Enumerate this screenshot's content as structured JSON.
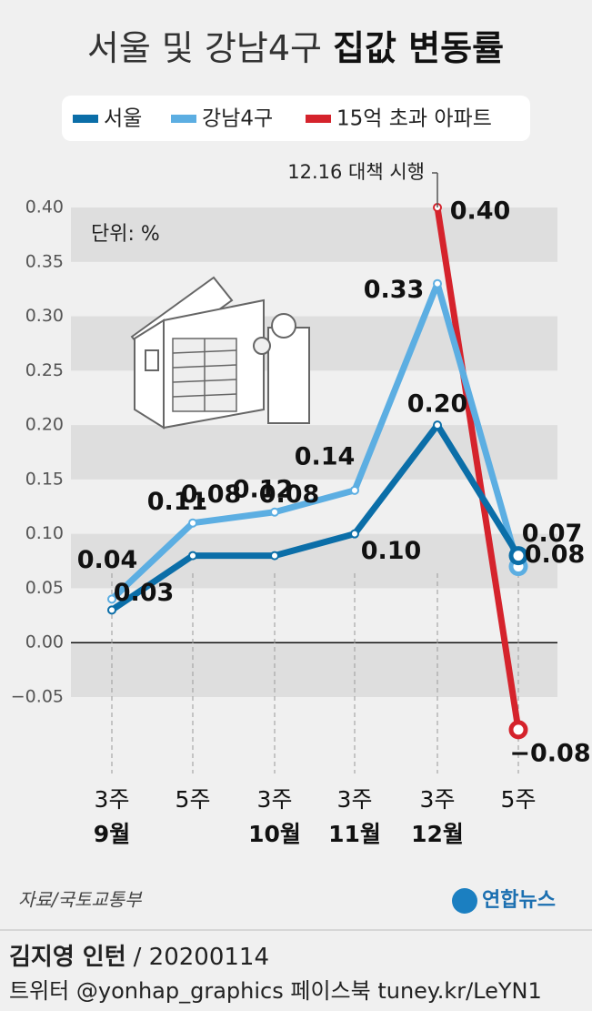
{
  "chart_data": {
    "type": "line",
    "title": "서울 및 강남4구",
    "title_emphasis": "집값 변동률",
    "unit_label": "단위: %",
    "annotation": "12.16 대책 시행",
    "categories": [
      "3주",
      "5주",
      "3주",
      "3주",
      "3주",
      "5주"
    ],
    "months": [
      "9월",
      null,
      "10월",
      "11월",
      "12월",
      null
    ],
    "series": [
      {
        "name": "서울",
        "color": "#0b6ea8",
        "values": [
          0.03,
          0.08,
          0.08,
          0.1,
          0.2,
          0.08
        ],
        "value_labels": [
          "0.03",
          "0.08",
          "0.08",
          "0.10",
          "0.20",
          "0.08"
        ]
      },
      {
        "name": "강남4구",
        "color": "#5caee2",
        "values": [
          0.04,
          0.11,
          0.12,
          0.14,
          0.33,
          0.07
        ],
        "value_labels": [
          "0.04",
          "0.11",
          "0.12",
          "0.14",
          "0.33",
          "0.07"
        ]
      },
      {
        "name": "15억 초과 아파트",
        "color": "#d5232c",
        "values": [
          null,
          null,
          null,
          null,
          0.4,
          -0.08
        ],
        "value_labels": [
          null,
          null,
          null,
          null,
          "0.40",
          "−0.08"
        ]
      }
    ],
    "ylim": [
      -0.05,
      0.4
    ],
    "yticks": [
      {
        "value": 0.4,
        "label": "0.40"
      },
      {
        "value": 0.35,
        "label": "0.35"
      },
      {
        "value": 0.3,
        "label": "0.30"
      },
      {
        "value": 0.25,
        "label": "0.25"
      },
      {
        "value": 0.2,
        "label": "0.20"
      },
      {
        "value": 0.15,
        "label": "0.15"
      },
      {
        "value": 0.1,
        "label": "0.10"
      },
      {
        "value": 0.05,
        "label": "0.05"
      },
      {
        "value": 0.0,
        "label": "0.00"
      },
      {
        "value": -0.05,
        "label": "−0.05"
      }
    ],
    "grid": true,
    "source": "자료/국토교통부",
    "agency": "연합뉴스"
  },
  "footer": {
    "credit": "김지영 인턴",
    "date": "/ 20200114",
    "social": "트위터 @yonhap_graphics  페이스북 tuney.kr/LeYN1"
  }
}
